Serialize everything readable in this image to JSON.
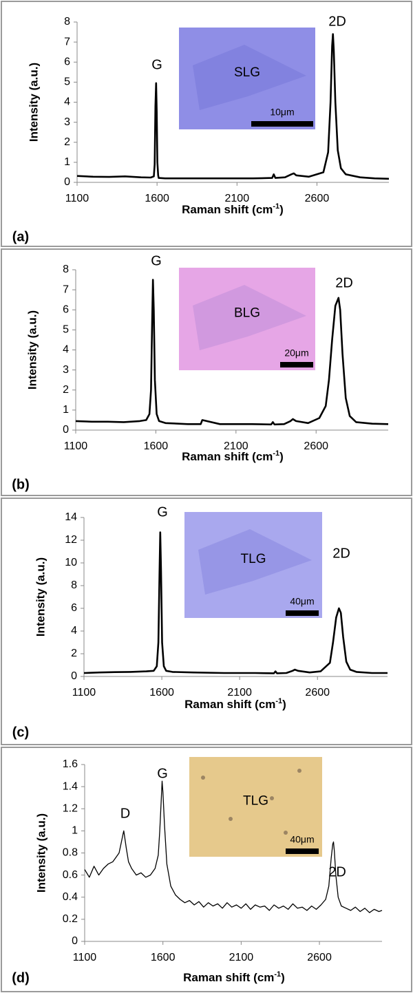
{
  "chart_data": [
    {
      "type": "line",
      "panel_label": "(a)",
      "annotations": [
        "G",
        "2D"
      ],
      "inset": {
        "label": "SLG",
        "scale": "10μm"
      },
      "ylabel": "Intensity (a.u.)",
      "xlabel": "Raman shift (cm",
      "xlabel_sup": "-1",
      "xlabel_end": ")",
      "xlim": [
        1100,
        3050
      ],
      "xticks": [
        1100,
        1600,
        2100,
        2600
      ],
      "ylim": [
        0,
        8
      ],
      "yticks": [
        0,
        1,
        2,
        3,
        4,
        5,
        6,
        7,
        8
      ],
      "color": "#000000",
      "x": [
        1100,
        1200,
        1300,
        1400,
        1500,
        1560,
        1580,
        1585,
        1590,
        1594,
        1598,
        1602,
        1607,
        1610,
        1650,
        1800,
        2000,
        2200,
        2320,
        2330,
        2340,
        2400,
        2440,
        2455,
        2470,
        2550,
        2640,
        2670,
        2685,
        2695,
        2700,
        2705,
        2715,
        2730,
        2750,
        2780,
        2870,
        2960,
        3050
      ],
      "values": [
        0.32,
        0.28,
        0.27,
        0.3,
        0.25,
        0.24,
        0.3,
        0.9,
        3.8,
        4.95,
        3.5,
        1.0,
        0.35,
        0.22,
        0.2,
        0.2,
        0.2,
        0.2,
        0.22,
        0.4,
        0.22,
        0.25,
        0.4,
        0.45,
        0.35,
        0.28,
        0.5,
        1.5,
        4.0,
        6.8,
        7.4,
        6.6,
        4.0,
        1.6,
        0.7,
        0.4,
        0.25,
        0.2,
        0.18
      ]
    },
    {
      "type": "line",
      "panel_label": "(b)",
      "annotations": [
        "G",
        "2D"
      ],
      "inset": {
        "label": "BLG",
        "scale": "20μm"
      },
      "ylabel": "Intensity (a.u.)",
      "xlabel": "Raman shift (cm",
      "xlabel_sup": "-1",
      "xlabel_end": ")",
      "xlim": [
        1100,
        3050
      ],
      "xticks": [
        1100,
        1600,
        2100,
        2600
      ],
      "ylim": [
        0,
        8
      ],
      "yticks": [
        0,
        1,
        2,
        3,
        4,
        5,
        6,
        7,
        8
      ],
      "color": "#000000",
      "x": [
        1100,
        1200,
        1300,
        1400,
        1500,
        1540,
        1560,
        1570,
        1577,
        1582,
        1587,
        1594,
        1605,
        1620,
        1660,
        1800,
        1880,
        1890,
        2000,
        2200,
        2320,
        2330,
        2340,
        2400,
        2440,
        2455,
        2475,
        2550,
        2620,
        2660,
        2680,
        2700,
        2720,
        2740,
        2750,
        2765,
        2785,
        2810,
        2850,
        2950,
        3050
      ],
      "values": [
        0.45,
        0.42,
        0.42,
        0.4,
        0.45,
        0.5,
        0.8,
        2.0,
        5.5,
        7.5,
        6.0,
        2.5,
        0.8,
        0.45,
        0.35,
        0.3,
        0.3,
        0.5,
        0.3,
        0.3,
        0.28,
        0.4,
        0.28,
        0.3,
        0.45,
        0.55,
        0.45,
        0.35,
        0.6,
        1.2,
        2.5,
        4.5,
        6.2,
        6.6,
        6.0,
        3.8,
        1.6,
        0.7,
        0.4,
        0.32,
        0.3
      ]
    },
    {
      "type": "line",
      "panel_label": "(c)",
      "annotations": [
        "G",
        "2D"
      ],
      "inset": {
        "label": "TLG",
        "scale": "40μm"
      },
      "ylabel": "Intensity (a.u.)",
      "xlabel": "Raman shift (cm",
      "xlabel_sup": "-1",
      "xlabel_end": ")",
      "xlim": [
        1100,
        3050
      ],
      "xticks": [
        1100,
        1600,
        2100,
        2600
      ],
      "ylim": [
        0,
        14
      ],
      "yticks": [
        0,
        2,
        4,
        6,
        8,
        10,
        12,
        14
      ],
      "color": "#000000",
      "x": [
        1100,
        1200,
        1300,
        1400,
        1500,
        1548,
        1568,
        1578,
        1585,
        1590,
        1595,
        1602,
        1613,
        1628,
        1668,
        1800,
        2000,
        2200,
        2320,
        2330,
        2340,
        2400,
        2440,
        2455,
        2475,
        2550,
        2620,
        2680,
        2700,
        2720,
        2738,
        2750,
        2765,
        2785,
        2810,
        2850,
        2950,
        3050
      ],
      "values": [
        0.3,
        0.35,
        0.38,
        0.4,
        0.45,
        0.5,
        0.9,
        3.0,
        9.0,
        12.7,
        9.5,
        3.0,
        0.9,
        0.5,
        0.4,
        0.35,
        0.3,
        0.3,
        0.28,
        0.45,
        0.28,
        0.3,
        0.5,
        0.6,
        0.5,
        0.35,
        0.45,
        1.2,
        3.0,
        5.2,
        6.0,
        5.6,
        3.5,
        1.3,
        0.6,
        0.4,
        0.3,
        0.3
      ]
    },
    {
      "type": "line",
      "panel_label": "(d)",
      "annotations": [
        "D",
        "G",
        "2D"
      ],
      "inset": {
        "label": "TLG",
        "scale": "40μm"
      },
      "ylabel": "Intensity (a.u.)",
      "xlabel": "Raman shift (cm",
      "xlabel_sup": "-1",
      "xlabel_end": ")",
      "xlim": [
        1100,
        3000
      ],
      "xticks": [
        1100,
        1600,
        2100,
        2600
      ],
      "ylim": [
        0,
        1.6
      ],
      "yticks": [
        0,
        0.2,
        0.4,
        0.6,
        0.8,
        1,
        1.2,
        1.4,
        1.6
      ],
      "color": "#000000",
      "x": [
        1100,
        1130,
        1160,
        1190,
        1220,
        1250,
        1280,
        1300,
        1320,
        1335,
        1345,
        1350,
        1355,
        1365,
        1380,
        1400,
        1430,
        1460,
        1490,
        1520,
        1550,
        1570,
        1580,
        1590,
        1595,
        1600,
        1610,
        1625,
        1650,
        1680,
        1710,
        1740,
        1770,
        1800,
        1830,
        1860,
        1890,
        1920,
        1950,
        1980,
        2010,
        2040,
        2070,
        2100,
        2130,
        2160,
        2190,
        2220,
        2250,
        2280,
        2310,
        2340,
        2370,
        2400,
        2430,
        2460,
        2490,
        2520,
        2550,
        2580,
        2610,
        2640,
        2660,
        2675,
        2685,
        2690,
        2695,
        2705,
        2720,
        2740,
        2770,
        2800,
        2830,
        2860,
        2890,
        2920,
        2950,
        2980,
        3000
      ],
      "values": [
        0.65,
        0.58,
        0.68,
        0.6,
        0.66,
        0.7,
        0.72,
        0.76,
        0.8,
        0.9,
        0.97,
        1.0,
        0.95,
        0.85,
        0.72,
        0.66,
        0.6,
        0.62,
        0.58,
        0.6,
        0.66,
        0.78,
        1.0,
        1.3,
        1.45,
        1.35,
        1.05,
        0.7,
        0.5,
        0.42,
        0.38,
        0.35,
        0.37,
        0.33,
        0.36,
        0.31,
        0.35,
        0.32,
        0.34,
        0.3,
        0.35,
        0.31,
        0.33,
        0.3,
        0.34,
        0.29,
        0.33,
        0.31,
        0.32,
        0.28,
        0.33,
        0.3,
        0.32,
        0.29,
        0.34,
        0.3,
        0.31,
        0.28,
        0.32,
        0.29,
        0.33,
        0.38,
        0.5,
        0.75,
        0.88,
        0.9,
        0.82,
        0.6,
        0.4,
        0.32,
        0.3,
        0.28,
        0.31,
        0.27,
        0.3,
        0.26,
        0.29,
        0.27,
        0.28
      ]
    }
  ]
}
